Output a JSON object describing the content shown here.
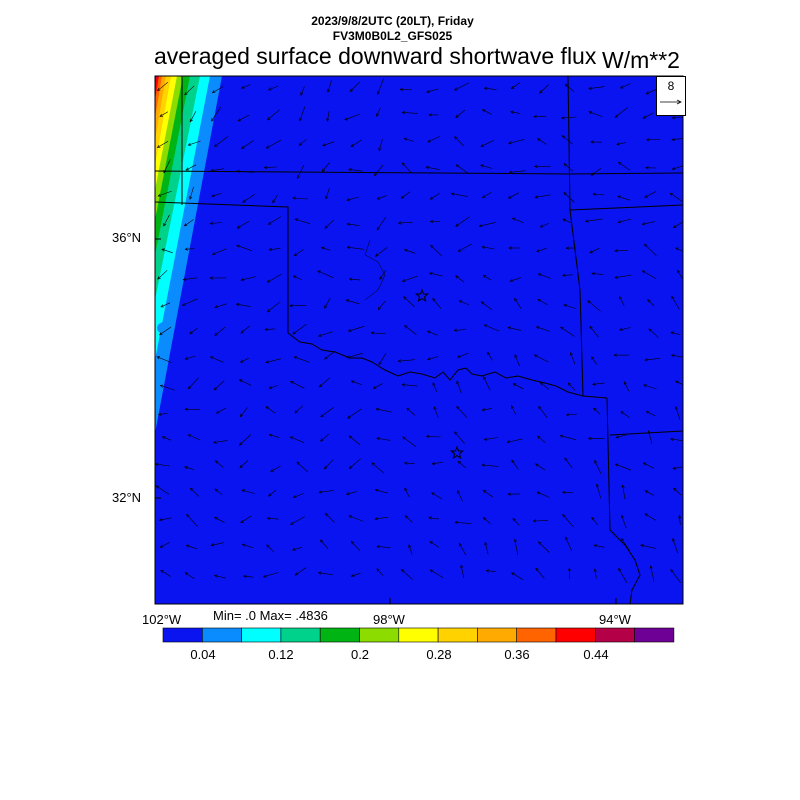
{
  "header": {
    "datetime": "2023/9/8/2UTC (20LT), Friday",
    "model": "FV3M0B0L2_GFS025",
    "title": "averaged surface downward shortwave flux",
    "units": "W/m**2"
  },
  "axes": {
    "lat_labels": [
      "36°N",
      "32°N"
    ],
    "lon_labels": [
      "102°W",
      "98°W",
      "94°W"
    ]
  },
  "stats": {
    "text": "Min= .0 Max= .4836"
  },
  "colorbar": {
    "colors": [
      "#0a14f0",
      "#0a8cff",
      "#00ffff",
      "#00d28c",
      "#00b414",
      "#8cdc00",
      "#ffff00",
      "#ffd200",
      "#ffaa00",
      "#ff6400",
      "#ff0000",
      "#b40046",
      "#6e0096"
    ],
    "tick_labels": [
      "0.04",
      "0.12",
      "0.2",
      "0.28",
      "0.36",
      "0.44"
    ]
  },
  "vector_reference": {
    "label": "8"
  },
  "markers": [
    {
      "name": "city-star-oklahoma-city"
    },
    {
      "name": "city-star-dallas"
    }
  ]
}
